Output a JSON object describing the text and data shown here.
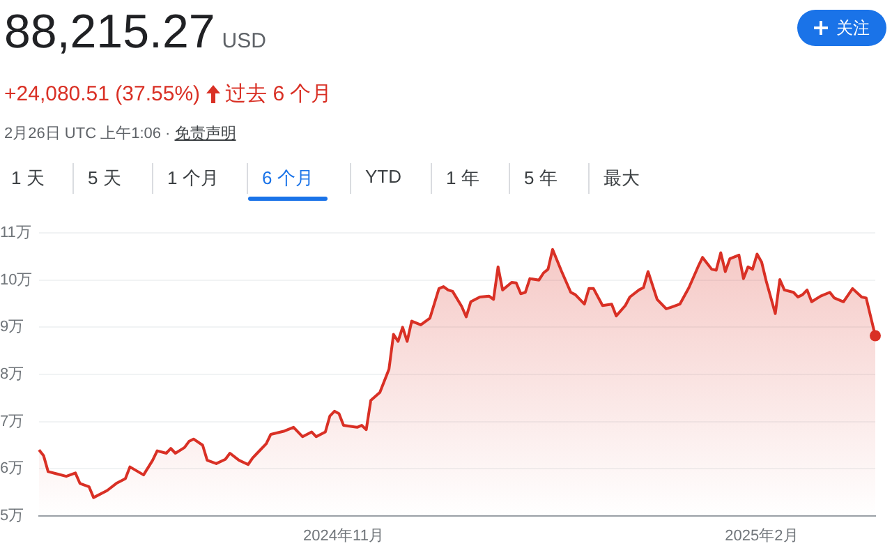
{
  "chart_data": {
    "type": "area",
    "title": "88,215.27",
    "subtitle": "USD",
    "annotations": [
      "+24,080.51 (37.55%)",
      "过去 6 个月",
      "2月26日 UTC 上午1:06 ·",
      "免责声明",
      "1 天",
      "5 天",
      "1 个月",
      "6 个月",
      "YTD",
      "1 年",
      "5 年",
      "最大",
      "关注"
    ],
    "x": [
      "2024-08-26",
      "2024-08-27",
      "2024-08-28",
      "2024-08-30",
      "2024-09-01",
      "2024-09-03",
      "2024-09-04",
      "2024-09-06",
      "2024-09-07",
      "2024-09-10",
      "2024-09-12",
      "2024-09-14",
      "2024-09-15",
      "2024-09-18",
      "2024-09-20",
      "2024-09-21",
      "2024-09-23",
      "2024-09-24",
      "2024-09-25",
      "2024-09-27",
      "2024-09-28",
      "2024-09-29",
      "2024-10-01",
      "2024-10-02",
      "2024-10-04",
      "2024-10-06",
      "2024-10-07",
      "2024-10-09",
      "2024-10-11",
      "2024-10-12",
      "2024-10-13",
      "2024-10-15",
      "2024-10-16",
      "2024-10-19",
      "2024-10-21",
      "2024-10-23",
      "2024-10-25",
      "2024-10-26",
      "2024-10-28",
      "2024-10-29",
      "2024-10-30",
      "2024-10-31",
      "2024-11-01",
      "2024-11-04",
      "2024-11-05",
      "2024-11-06",
      "2024-11-07",
      "2024-11-09",
      "2024-11-11",
      "2024-11-12",
      "2024-11-13",
      "2024-11-14",
      "2024-11-15",
      "2024-11-16",
      "2024-11-18",
      "2024-11-20",
      "2024-11-22",
      "2024-11-23",
      "2024-11-24",
      "2024-11-25",
      "2024-11-27",
      "2024-11-28",
      "2024-11-29",
      "2024-12-01",
      "2024-12-03",
      "2024-12-04",
      "2024-12-05",
      "2024-12-06",
      "2024-12-08",
      "2024-12-09",
      "2024-12-10",
      "2024-12-11",
      "2024-12-12",
      "2024-12-14",
      "2024-12-15",
      "2024-12-16",
      "2024-12-17",
      "2024-12-19",
      "2024-12-21",
      "2024-12-22",
      "2024-12-24",
      "2024-12-25",
      "2024-12-26",
      "2024-12-28",
      "2024-12-30",
      "2024-12-31",
      "2025-01-02",
      "2025-01-03",
      "2025-01-05",
      "2025-01-06",
      "2025-01-07",
      "2025-01-09",
      "2025-01-11",
      "2025-01-12",
      "2025-01-14",
      "2025-01-16",
      "2025-01-18",
      "2025-01-19",
      "2025-01-21",
      "2025-01-22",
      "2025-01-23",
      "2025-01-24",
      "2025-01-25",
      "2025-01-27",
      "2025-01-28",
      "2025-01-29",
      "2025-01-30",
      "2025-01-31",
      "2025-02-01",
      "2025-02-02",
      "2025-02-04",
      "2025-02-05",
      "2025-02-06",
      "2025-02-08",
      "2025-02-09",
      "2025-02-10",
      "2025-02-11",
      "2025-02-12",
      "2025-02-14",
      "2025-02-16",
      "2025-02-17",
      "2025-02-19",
      "2025-02-21",
      "2025-02-23",
      "2025-02-24",
      "2025-02-26"
    ],
    "series": [
      {
        "color": "#d93025",
        "values": [
          6.4,
          6.28,
          5.94,
          5.89,
          5.84,
          5.91,
          5.69,
          5.62,
          5.39,
          5.54,
          5.69,
          5.79,
          6.04,
          5.87,
          6.18,
          6.38,
          6.33,
          6.43,
          6.33,
          6.45,
          6.58,
          6.63,
          6.5,
          6.18,
          6.11,
          6.2,
          6.33,
          6.18,
          6.09,
          6.23,
          6.33,
          6.53,
          6.73,
          6.8,
          6.88,
          6.68,
          6.78,
          6.68,
          6.78,
          7.12,
          7.22,
          7.17,
          6.92,
          6.88,
          6.92,
          6.83,
          7.45,
          7.62,
          8.11,
          8.85,
          8.7,
          9.0,
          8.7,
          9.13,
          9.05,
          9.19,
          9.82,
          9.86,
          9.79,
          9.76,
          9.44,
          9.22,
          9.54,
          9.64,
          9.66,
          9.59,
          10.28,
          9.79,
          9.95,
          9.94,
          9.71,
          9.74,
          10.03,
          10.0,
          10.15,
          10.23,
          10.65,
          10.18,
          9.74,
          9.69,
          9.49,
          9.82,
          9.82,
          9.46,
          9.49,
          9.24,
          9.46,
          9.64,
          9.79,
          9.84,
          10.18,
          9.59,
          9.39,
          9.42,
          9.49,
          9.84,
          10.28,
          10.48,
          10.23,
          10.21,
          10.58,
          10.18,
          10.45,
          10.53,
          10.03,
          10.28,
          10.23,
          10.55,
          10.38,
          9.98,
          9.29,
          10.01,
          9.79,
          9.74,
          9.64,
          9.69,
          9.79,
          9.54,
          9.66,
          9.74,
          9.62,
          9.54,
          9.82,
          9.64,
          9.62,
          8.82
        ]
      }
    ],
    "xlim": [
      "2024-08-26",
      "2025-02-26"
    ],
    "xticks": [
      {
        "value": "2024-11-01",
        "label": "2024年11月"
      },
      {
        "value": "2025-02-01",
        "label": "2025年2月"
      }
    ],
    "ylim": [
      5,
      11
    ],
    "yticks": [
      {
        "value": 5,
        "label": "5万"
      },
      {
        "value": 6,
        "label": "6万"
      },
      {
        "value": 7,
        "label": "7万"
      },
      {
        "value": 8,
        "label": "8万"
      },
      {
        "value": 9,
        "label": "9万"
      },
      {
        "value": 10,
        "label": "10万"
      },
      {
        "value": 11,
        "label": "11万"
      }
    ],
    "grid": "y",
    "legend": false
  }
}
